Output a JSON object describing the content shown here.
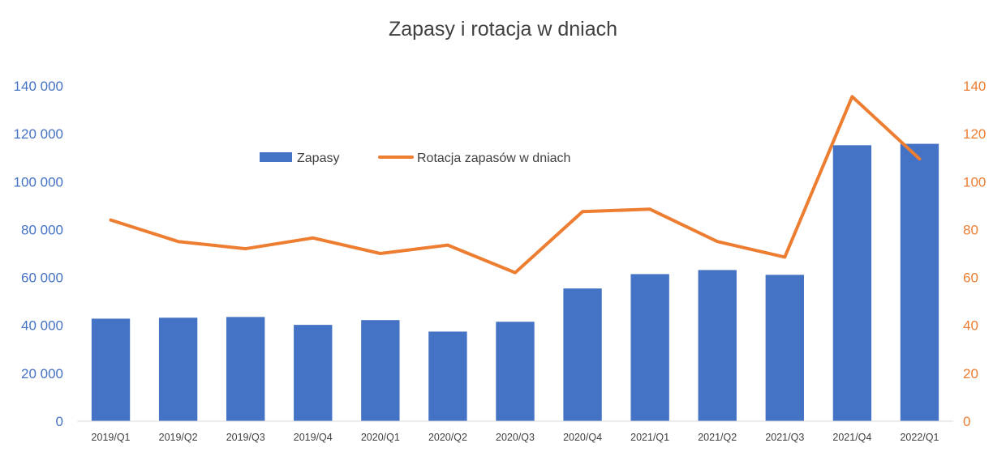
{
  "chart_data": {
    "type": "bar",
    "title": "Zapasy i rotacja w dniach",
    "categories": [
      "2019/Q1",
      "2019/Q2",
      "2019/Q3",
      "2019/Q4",
      "2020/Q1",
      "2020/Q2",
      "2020/Q3",
      "2020/Q4",
      "2021/Q1",
      "2021/Q2",
      "2021/Q3",
      "2021/Q4",
      "2022/Q1"
    ],
    "series": [
      {
        "name": "Zapasy",
        "type": "bar",
        "axis": "left",
        "color": "#4472C4",
        "values": [
          42800,
          43200,
          43500,
          40200,
          42200,
          37400,
          41500,
          55400,
          61400,
          63100,
          61100,
          115200,
          115800
        ]
      },
      {
        "name": "Rotacja zapasów w dniach",
        "type": "line",
        "axis": "right",
        "color": "#ED7D31",
        "values": [
          84,
          75,
          72,
          76.5,
          70,
          73.5,
          62,
          87.5,
          88.5,
          75,
          68.5,
          135.5,
          109.5
        ]
      }
    ],
    "y_left": {
      "ylim": [
        0,
        140000
      ],
      "ticks": [
        "0",
        "20 000",
        "40 000",
        "60 000",
        "80 000",
        "100 000",
        "120 000",
        "140 000"
      ],
      "color": "#4472C4"
    },
    "y_right": {
      "ylim": [
        0,
        140
      ],
      "ticks": [
        "0",
        "20",
        "40",
        "60",
        "80",
        "100",
        "120",
        "140"
      ],
      "color": "#ED7D31"
    },
    "grid": false,
    "legend_position": "top-center"
  }
}
